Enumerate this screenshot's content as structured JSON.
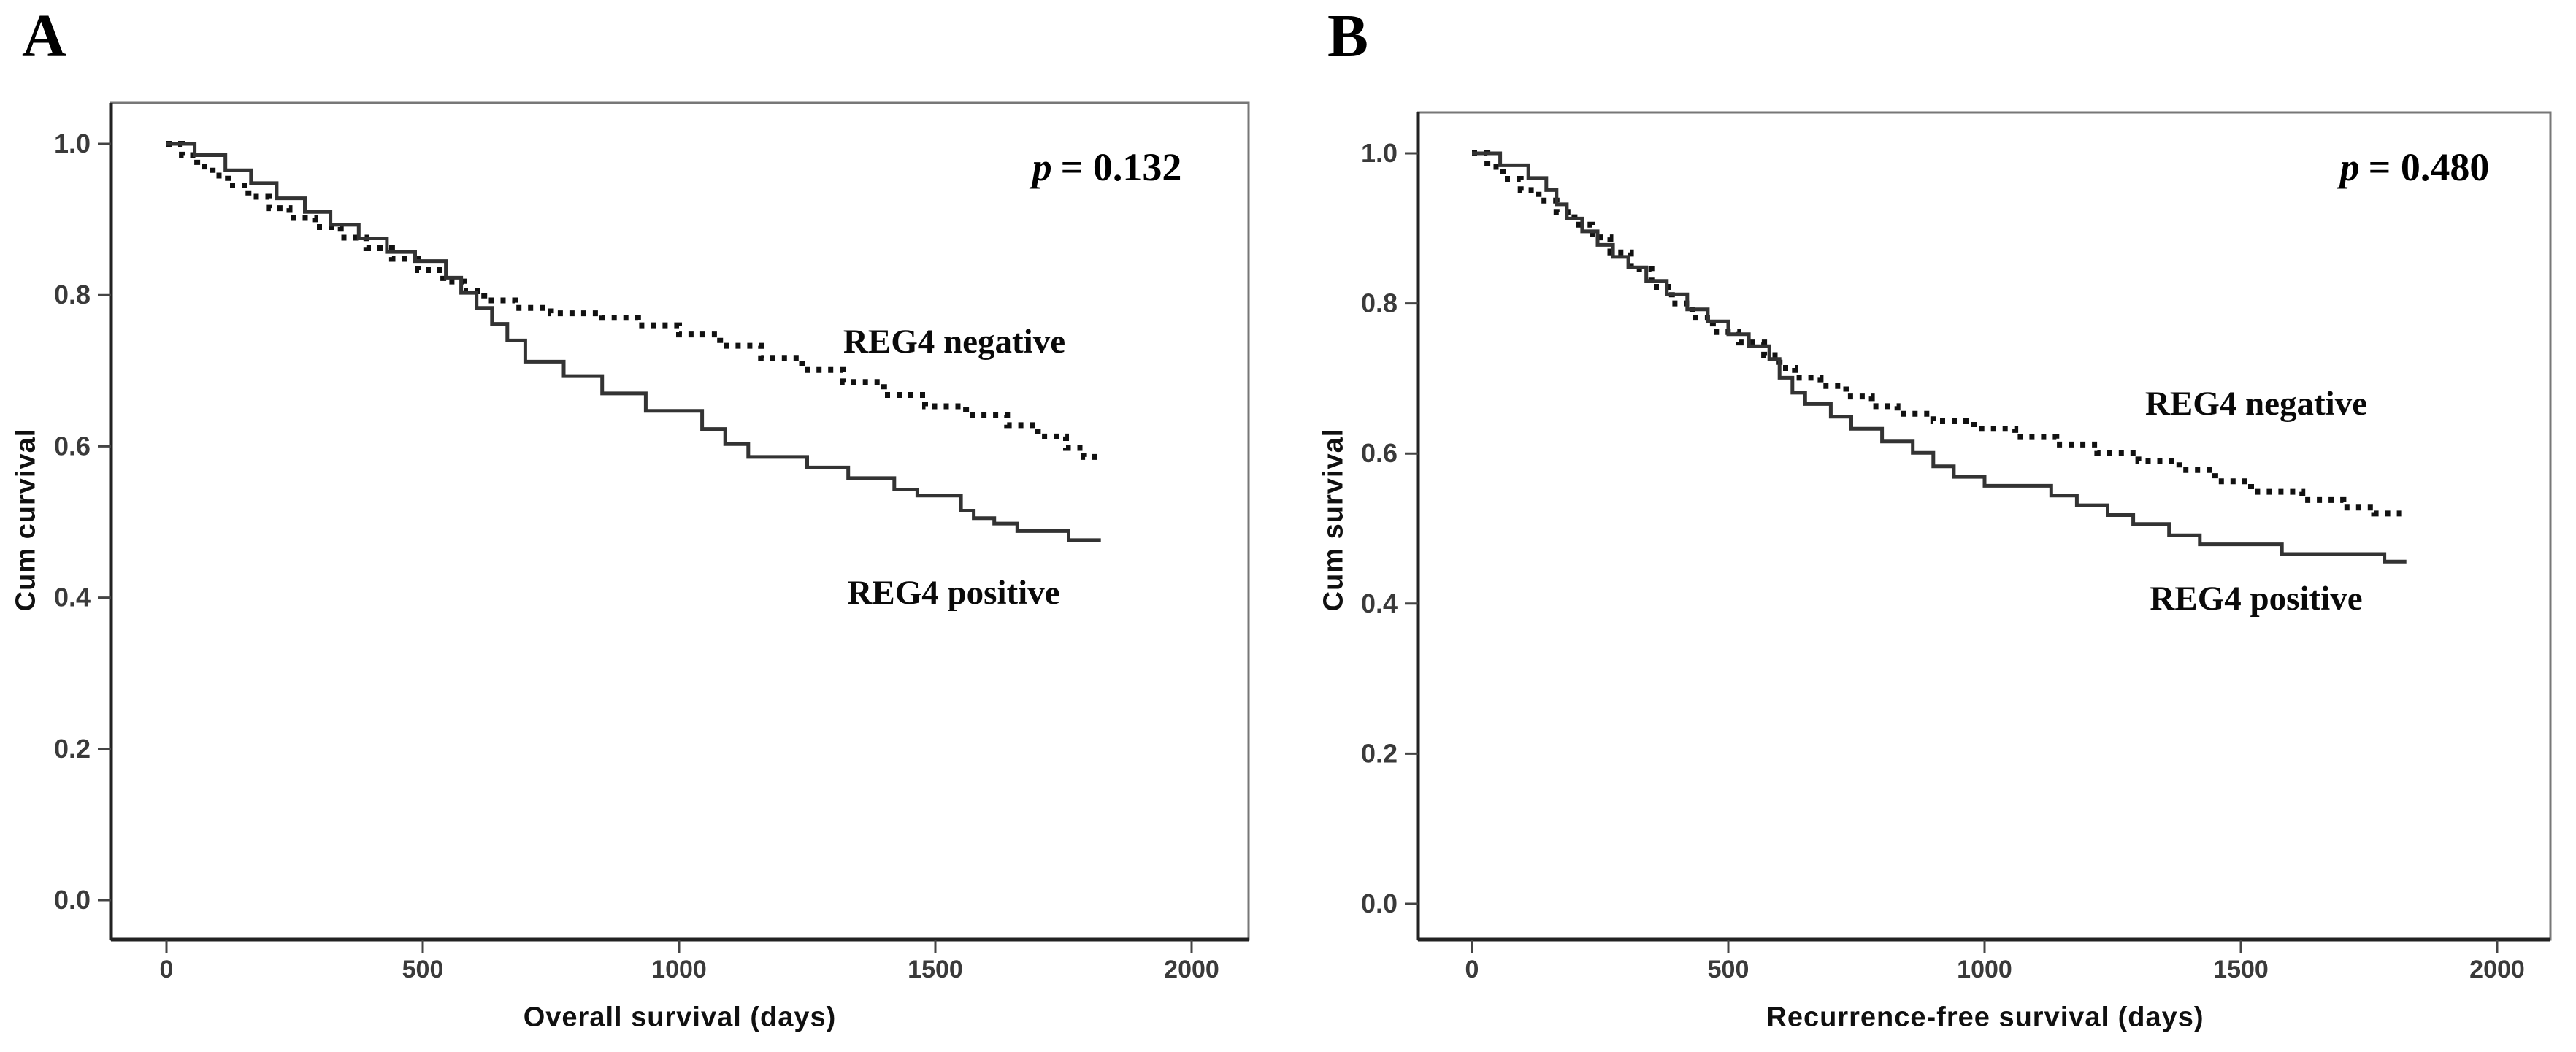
{
  "figure": {
    "background": "#ffffff",
    "curve_color_dotted": "#111111",
    "curve_color_solid": "#333333",
    "axis_color": "#222222",
    "border_color": "#777777",
    "tick_label_color": "#3a3a3a"
  },
  "chart_data": [
    {
      "type": "line",
      "subtype": "kaplan_meier_step",
      "title": "A",
      "xlabel": "Overall survival (days)",
      "ylabel": "Cum curvival",
      "xlim": [
        0,
        2000
      ],
      "ylim": [
        0.0,
        1.0
      ],
      "x_ticks": [
        "0",
        "500",
        "1000",
        "1500",
        "2000"
      ],
      "y_ticks": [
        "0.0",
        "0.2",
        "0.4",
        "0.6",
        "0.8",
        "1.0"
      ],
      "grid": false,
      "legend_position": "inline-labels",
      "annotation": {
        "full": "p = 0.132",
        "text_italic": "p",
        "text": "= 0.132",
        "position": "top-right"
      },
      "series": [
        {
          "name": "REG4 negative",
          "line_style": "dotted",
          "color": "#111111",
          "points": [
            [
              0,
              1.0
            ],
            [
              30,
              0.985
            ],
            [
              60,
              0.97
            ],
            [
              90,
              0.958
            ],
            [
              120,
              0.945
            ],
            [
              160,
              0.93
            ],
            [
              200,
              0.915
            ],
            [
              240,
              0.902
            ],
            [
              290,
              0.89
            ],
            [
              340,
              0.876
            ],
            [
              390,
              0.862
            ],
            [
              440,
              0.848
            ],
            [
              490,
              0.833
            ],
            [
              540,
              0.818
            ],
            [
              580,
              0.805
            ],
            [
              620,
              0.793
            ],
            [
              680,
              0.783
            ],
            [
              750,
              0.776
            ],
            [
              850,
              0.77
            ],
            [
              920,
              0.76
            ],
            [
              1000,
              0.748
            ],
            [
              1080,
              0.733
            ],
            [
              1160,
              0.717
            ],
            [
              1240,
              0.701
            ],
            [
              1320,
              0.685
            ],
            [
              1400,
              0.668
            ],
            [
              1480,
              0.653
            ],
            [
              1560,
              0.641
            ],
            [
              1640,
              0.628
            ],
            [
              1700,
              0.613
            ],
            [
              1755,
              0.598
            ],
            [
              1790,
              0.586
            ],
            [
              1823,
              0.586
            ]
          ]
        },
        {
          "name": "REG4 positive",
          "line_style": "solid",
          "color": "#333333",
          "points": [
            [
              0,
              1.0
            ],
            [
              55,
              0.985
            ],
            [
              115,
              0.965
            ],
            [
              165,
              0.948
            ],
            [
              215,
              0.928
            ],
            [
              270,
              0.91
            ],
            [
              320,
              0.893
            ],
            [
              375,
              0.875
            ],
            [
              430,
              0.857
            ],
            [
              485,
              0.845
            ],
            [
              545,
              0.823
            ],
            [
              575,
              0.803
            ],
            [
              605,
              0.783
            ],
            [
              635,
              0.762
            ],
            [
              665,
              0.74
            ],
            [
              700,
              0.712
            ],
            [
              775,
              0.693
            ],
            [
              850,
              0.67
            ],
            [
              935,
              0.647
            ],
            [
              1045,
              0.623
            ],
            [
              1090,
              0.603
            ],
            [
              1135,
              0.586
            ],
            [
              1250,
              0.572
            ],
            [
              1330,
              0.558
            ],
            [
              1420,
              0.543
            ],
            [
              1465,
              0.535
            ],
            [
              1550,
              0.515
            ],
            [
              1575,
              0.505
            ],
            [
              1615,
              0.498
            ],
            [
              1660,
              0.488
            ],
            [
              1760,
              0.476
            ],
            [
              1823,
              0.476
            ]
          ]
        }
      ]
    },
    {
      "type": "line",
      "subtype": "kaplan_meier_step",
      "title": "B",
      "xlabel": "Recurrence-free survival (days)",
      "ylabel": "Cum survival",
      "xlim": [
        0,
        2000
      ],
      "ylim": [
        0.0,
        1.0
      ],
      "x_ticks": [
        "0",
        "500",
        "1000",
        "1500",
        "2000"
      ],
      "y_ticks": [
        "0.0",
        "0.2",
        "0.4",
        "0.6",
        "0.8",
        "1.0"
      ],
      "grid": false,
      "legend_position": "inline-labels",
      "annotation": {
        "full": "p = 0.480",
        "text_italic": "p",
        "text": "= 0.480",
        "position": "top-right"
      },
      "series": [
        {
          "name": "REG4 negative",
          "line_style": "dotted",
          "color": "#111111",
          "points": [
            [
              0,
              1.0
            ],
            [
              30,
              0.982
            ],
            [
              60,
              0.966
            ],
            [
              95,
              0.951
            ],
            [
              130,
              0.937
            ],
            [
              165,
              0.922
            ],
            [
              200,
              0.905
            ],
            [
              235,
              0.888
            ],
            [
              270,
              0.868
            ],
            [
              310,
              0.846
            ],
            [
              350,
              0.822
            ],
            [
              390,
              0.8
            ],
            [
              430,
              0.781
            ],
            [
              470,
              0.762
            ],
            [
              520,
              0.748
            ],
            [
              570,
              0.731
            ],
            [
              600,
              0.714
            ],
            [
              630,
              0.701
            ],
            [
              680,
              0.69
            ],
            [
              730,
              0.676
            ],
            [
              780,
              0.663
            ],
            [
              830,
              0.653
            ],
            [
              900,
              0.643
            ],
            [
              980,
              0.633
            ],
            [
              1060,
              0.622
            ],
            [
              1140,
              0.612
            ],
            [
              1220,
              0.601
            ],
            [
              1300,
              0.59
            ],
            [
              1380,
              0.578
            ],
            [
              1450,
              0.563
            ],
            [
              1520,
              0.549
            ],
            [
              1620,
              0.538
            ],
            [
              1700,
              0.528
            ],
            [
              1760,
              0.52
            ],
            [
              1823,
              0.52
            ]
          ]
        },
        {
          "name": "REG4 positive",
          "line_style": "solid",
          "color": "#333333",
          "points": [
            [
              0,
              1.0
            ],
            [
              55,
              0.984
            ],
            [
              110,
              0.967
            ],
            [
              145,
              0.951
            ],
            [
              165,
              0.932
            ],
            [
              185,
              0.913
            ],
            [
              215,
              0.896
            ],
            [
              245,
              0.878
            ],
            [
              275,
              0.862
            ],
            [
              305,
              0.848
            ],
            [
              340,
              0.83
            ],
            [
              380,
              0.812
            ],
            [
              420,
              0.792
            ],
            [
              460,
              0.776
            ],
            [
              500,
              0.759
            ],
            [
              540,
              0.743
            ],
            [
              580,
              0.726
            ],
            [
              600,
              0.701
            ],
            [
              625,
              0.681
            ],
            [
              650,
              0.666
            ],
            [
              700,
              0.649
            ],
            [
              740,
              0.633
            ],
            [
              800,
              0.616
            ],
            [
              860,
              0.601
            ],
            [
              900,
              0.583
            ],
            [
              940,
              0.569
            ],
            [
              1000,
              0.557
            ],
            [
              1130,
              0.544
            ],
            [
              1180,
              0.531
            ],
            [
              1240,
              0.518
            ],
            [
              1290,
              0.506
            ],
            [
              1360,
              0.491
            ],
            [
              1420,
              0.479
            ],
            [
              1580,
              0.466
            ],
            [
              1780,
              0.456
            ],
            [
              1823,
              0.456
            ]
          ]
        }
      ]
    }
  ]
}
